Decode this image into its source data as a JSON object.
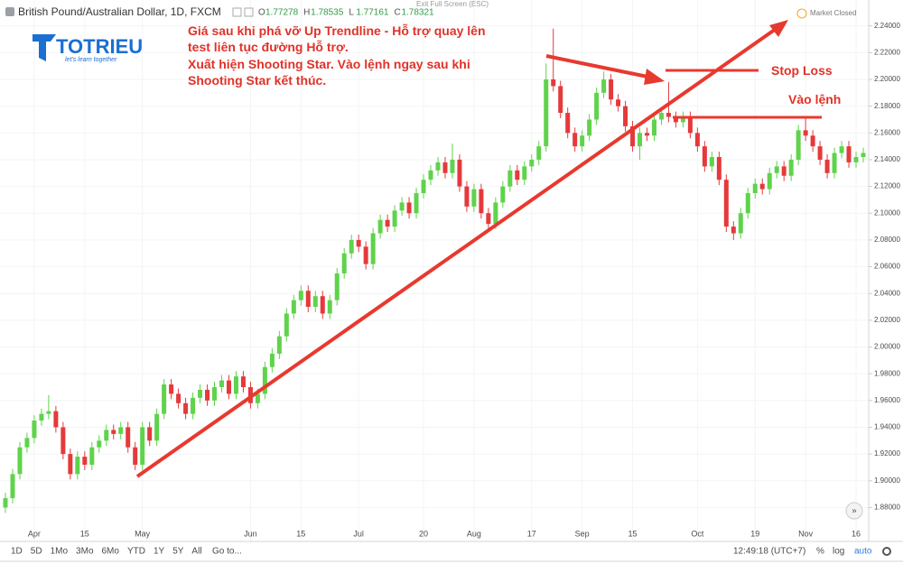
{
  "chart_data": {
    "type": "candlestick",
    "ylim": [
      1.856,
      2.256
    ],
    "yticks": [
      {
        "value": 1.88,
        "label": "1.88000"
      },
      {
        "value": 1.9,
        "label": "1.90000"
      },
      {
        "value": 1.92,
        "label": "1.92000"
      },
      {
        "value": 1.94,
        "label": "1.94000"
      },
      {
        "value": 1.96,
        "label": "1.96000"
      },
      {
        "value": 1.98,
        "label": "1.98000"
      },
      {
        "value": 2.0,
        "label": "2.00000"
      },
      {
        "value": 2.02,
        "label": "2.02000"
      },
      {
        "value": 2.04,
        "label": "2.04000"
      },
      {
        "value": 2.06,
        "label": "2.06000"
      },
      {
        "value": 2.08,
        "label": "2.08000"
      },
      {
        "value": 2.1,
        "label": "2.10000"
      },
      {
        "value": 2.12,
        "label": "2.12000"
      },
      {
        "value": 2.14,
        "label": "2.14000"
      },
      {
        "value": 2.16,
        "label": "2.16000"
      },
      {
        "value": 2.18,
        "label": "2.18000"
      },
      {
        "value": 2.2,
        "label": "2.20000"
      },
      {
        "value": 2.22,
        "label": "2.22000"
      },
      {
        "value": 2.24,
        "label": "2.24000"
      }
    ],
    "xticks": [
      {
        "value": 4,
        "label": "Apr"
      },
      {
        "value": 11,
        "label": "15"
      },
      {
        "value": 19,
        "label": "May"
      },
      {
        "value": 34,
        "label": "Jun"
      },
      {
        "value": 41,
        "label": "15"
      },
      {
        "value": 49,
        "label": "Jul"
      },
      {
        "value": 58,
        "label": "20"
      },
      {
        "value": 65,
        "label": "Aug"
      },
      {
        "value": 73,
        "label": "17"
      },
      {
        "value": 80,
        "label": "Sep"
      },
      {
        "value": 87,
        "label": "15"
      },
      {
        "value": 96,
        "label": "Oct"
      },
      {
        "value": 104,
        "label": "19"
      },
      {
        "value": 111,
        "label": "Nov"
      },
      {
        "value": 118,
        "label": "16"
      }
    ],
    "grid": true,
    "up_color": "#5fd34b",
    "down_color": "#e5393b",
    "ohlc": [
      [
        1.88,
        1.891,
        1.876,
        1.887
      ],
      [
        1.887,
        1.909,
        1.883,
        1.905
      ],
      [
        1.905,
        1.929,
        1.901,
        1.925
      ],
      [
        1.925,
        1.936,
        1.921,
        1.932
      ],
      [
        1.932,
        1.949,
        1.928,
        1.945
      ],
      [
        1.945,
        1.954,
        1.941,
        1.95
      ],
      [
        1.95,
        1.964,
        1.946,
        1.952
      ],
      [
        1.952,
        1.956,
        1.936,
        1.94
      ],
      [
        1.94,
        1.944,
        1.916,
        1.92
      ],
      [
        1.92,
        1.924,
        1.901,
        1.905
      ],
      [
        1.905,
        1.922,
        1.901,
        1.918
      ],
      [
        1.918,
        1.922,
        1.908,
        1.912
      ],
      [
        1.912,
        1.929,
        1.908,
        1.925
      ],
      [
        1.925,
        1.934,
        1.921,
        1.93
      ],
      [
        1.93,
        1.942,
        1.926,
        1.938
      ],
      [
        1.938,
        1.942,
        1.931,
        1.935
      ],
      [
        1.935,
        1.944,
        1.931,
        1.94
      ],
      [
        1.94,
        1.944,
        1.921,
        1.925
      ],
      [
        1.925,
        1.929,
        1.908,
        1.912
      ],
      [
        1.912,
        1.944,
        1.908,
        1.94
      ],
      [
        1.94,
        1.944,
        1.926,
        1.93
      ],
      [
        1.93,
        1.954,
        1.926,
        1.95
      ],
      [
        1.95,
        1.976,
        1.946,
        1.972
      ],
      [
        1.972,
        1.976,
        1.961,
        1.965
      ],
      [
        1.965,
        1.969,
        1.954,
        1.958
      ],
      [
        1.958,
        1.962,
        1.946,
        1.95
      ],
      [
        1.95,
        1.966,
        1.946,
        1.962
      ],
      [
        1.962,
        1.972,
        1.958,
        1.968
      ],
      [
        1.968,
        1.972,
        1.956,
        1.96
      ],
      [
        1.96,
        1.974,
        1.956,
        1.97
      ],
      [
        1.97,
        1.979,
        1.966,
        1.975
      ],
      [
        1.975,
        1.979,
        1.961,
        1.965
      ],
      [
        1.965,
        1.982,
        1.961,
        1.978
      ],
      [
        1.978,
        1.982,
        1.966,
        1.97
      ],
      [
        1.97,
        1.974,
        1.954,
        1.958
      ],
      [
        1.958,
        1.969,
        1.954,
        1.965
      ],
      [
        1.965,
        1.989,
        1.961,
        1.985
      ],
      [
        1.985,
        1.999,
        1.981,
        1.995
      ],
      [
        1.995,
        2.012,
        1.991,
        2.008
      ],
      [
        2.008,
        2.029,
        2.004,
        2.025
      ],
      [
        2.025,
        2.039,
        2.021,
        2.035
      ],
      [
        2.035,
        2.046,
        2.031,
        2.042
      ],
      [
        2.042,
        2.046,
        2.026,
        2.03
      ],
      [
        2.03,
        2.042,
        2.026,
        2.038
      ],
      [
        2.038,
        2.042,
        2.021,
        2.025
      ],
      [
        2.025,
        2.039,
        2.021,
        2.035
      ],
      [
        2.035,
        2.059,
        2.031,
        2.055
      ],
      [
        2.055,
        2.074,
        2.051,
        2.07
      ],
      [
        2.07,
        2.084,
        2.066,
        2.08
      ],
      [
        2.08,
        2.084,
        2.071,
        2.075
      ],
      [
        2.075,
        2.079,
        2.058,
        2.062
      ],
      [
        2.062,
        2.089,
        2.058,
        2.085
      ],
      [
        2.085,
        2.099,
        2.081,
        2.095
      ],
      [
        2.095,
        2.099,
        2.086,
        2.09
      ],
      [
        2.09,
        2.106,
        2.086,
        2.102
      ],
      [
        2.102,
        2.112,
        2.098,
        2.108
      ],
      [
        2.108,
        2.112,
        2.096,
        2.1
      ],
      [
        2.1,
        2.119,
        2.096,
        2.115
      ],
      [
        2.115,
        2.129,
        2.111,
        2.125
      ],
      [
        2.125,
        2.136,
        2.121,
        2.132
      ],
      [
        2.132,
        2.142,
        2.128,
        2.138
      ],
      [
        2.138,
        2.142,
        2.126,
        2.13
      ],
      [
        2.13,
        2.152,
        2.126,
        2.14
      ],
      [
        2.14,
        2.144,
        2.116,
        2.12
      ],
      [
        2.12,
        2.124,
        2.101,
        2.105
      ],
      [
        2.105,
        2.122,
        2.101,
        2.118
      ],
      [
        2.118,
        2.122,
        2.096,
        2.1
      ],
      [
        2.1,
        2.104,
        2.088,
        2.092
      ],
      [
        2.092,
        2.112,
        2.088,
        2.108
      ],
      [
        2.108,
        2.124,
        2.104,
        2.12
      ],
      [
        2.12,
        2.136,
        2.116,
        2.132
      ],
      [
        2.132,
        2.136,
        2.121,
        2.125
      ],
      [
        2.125,
        2.139,
        2.121,
        2.135
      ],
      [
        2.135,
        2.144,
        2.131,
        2.14
      ],
      [
        2.14,
        2.154,
        2.136,
        2.15
      ],
      [
        2.15,
        2.212,
        2.146,
        2.2
      ],
      [
        2.2,
        2.238,
        2.191,
        2.195
      ],
      [
        2.195,
        2.199,
        2.171,
        2.175
      ],
      [
        2.175,
        2.179,
        2.156,
        2.16
      ],
      [
        2.16,
        2.164,
        2.146,
        2.15
      ],
      [
        2.15,
        2.162,
        2.146,
        2.158
      ],
      [
        2.158,
        2.174,
        2.154,
        2.17
      ],
      [
        2.17,
        2.194,
        2.166,
        2.19
      ],
      [
        2.19,
        2.206,
        2.186,
        2.2
      ],
      [
        2.2,
        2.204,
        2.181,
        2.185
      ],
      [
        2.185,
        2.189,
        2.176,
        2.18
      ],
      [
        2.18,
        2.184,
        2.161,
        2.165
      ],
      [
        2.165,
        2.169,
        2.146,
        2.15
      ],
      [
        2.15,
        2.164,
        2.14,
        2.16
      ],
      [
        2.16,
        2.164,
        2.154,
        2.158
      ],
      [
        2.158,
        2.174,
        2.154,
        2.17
      ],
      [
        2.17,
        2.179,
        2.166,
        2.175
      ],
      [
        2.175,
        2.198,
        2.168,
        2.172
      ],
      [
        2.172,
        2.176,
        2.164,
        2.168
      ],
      [
        2.168,
        2.176,
        2.164,
        2.172
      ],
      [
        2.172,
        2.176,
        2.156,
        2.16
      ],
      [
        2.16,
        2.164,
        2.146,
        2.15
      ],
      [
        2.15,
        2.154,
        2.131,
        2.135
      ],
      [
        2.135,
        2.146,
        2.131,
        2.142
      ],
      [
        2.142,
        2.146,
        2.121,
        2.125
      ],
      [
        2.125,
        2.129,
        2.086,
        2.09
      ],
      [
        2.09,
        2.094,
        2.08,
        2.085
      ],
      [
        2.085,
        2.104,
        2.081,
        2.1
      ],
      [
        2.1,
        2.119,
        2.096,
        2.115
      ],
      [
        2.115,
        2.126,
        2.111,
        2.122
      ],
      [
        2.122,
        2.126,
        2.114,
        2.118
      ],
      [
        2.118,
        2.134,
        2.114,
        2.13
      ],
      [
        2.13,
        2.139,
        2.126,
        2.135
      ],
      [
        2.135,
        2.139,
        2.124,
        2.128
      ],
      [
        2.128,
        2.144,
        2.124,
        2.14
      ],
      [
        2.14,
        2.166,
        2.136,
        2.162
      ],
      [
        2.162,
        2.172,
        2.154,
        2.158
      ],
      [
        2.158,
        2.162,
        2.146,
        2.15
      ],
      [
        2.15,
        2.154,
        2.136,
        2.14
      ],
      [
        2.14,
        2.144,
        2.126,
        2.13
      ],
      [
        2.13,
        2.149,
        2.126,
        2.145
      ],
      [
        2.145,
        2.154,
        2.141,
        2.15
      ],
      [
        2.15,
        2.154,
        2.134,
        2.138
      ],
      [
        2.138,
        2.146,
        2.134,
        2.142
      ],
      [
        2.142,
        2.149,
        2.138,
        2.145
      ]
    ],
    "annotations": [
      "Giá sau khi phá vỡ Up Trendline - Hỗ trợ quay lên",
      "test liên tục đường Hỗ trợ.",
      "Xuất hiện Shooting Star. Vào lệnh ngay sau khi",
      "Shooting Star kết thúc."
    ],
    "stop_loss_label": "Stop Loss",
    "entry_label": "Vào lệnh"
  },
  "header": {
    "symbol": "British Pound/Australian Dollar, 1D, FXCM",
    "ohlc": [
      {
        "key": "O",
        "value": "1.77278"
      },
      {
        "key": "H",
        "value": "1.78535"
      },
      {
        "key": "L",
        "value": "1.77161"
      },
      {
        "key": "C",
        "value": "1.78321"
      }
    ],
    "exit": "Exit Full Screen (ESC)",
    "status": "Market Closed"
  },
  "logo": {
    "name": "TOTRIEU",
    "tagline": "let's learn together"
  },
  "toolbar": {
    "ranges": [
      "1D",
      "5D",
      "1Mo",
      "3Mo",
      "6Mo",
      "YTD",
      "1Y",
      "5Y",
      "All"
    ],
    "goto": "Go to...",
    "time": "12:49:18 (UTC+7)",
    "options": [
      "%",
      "log",
      "auto"
    ]
  }
}
